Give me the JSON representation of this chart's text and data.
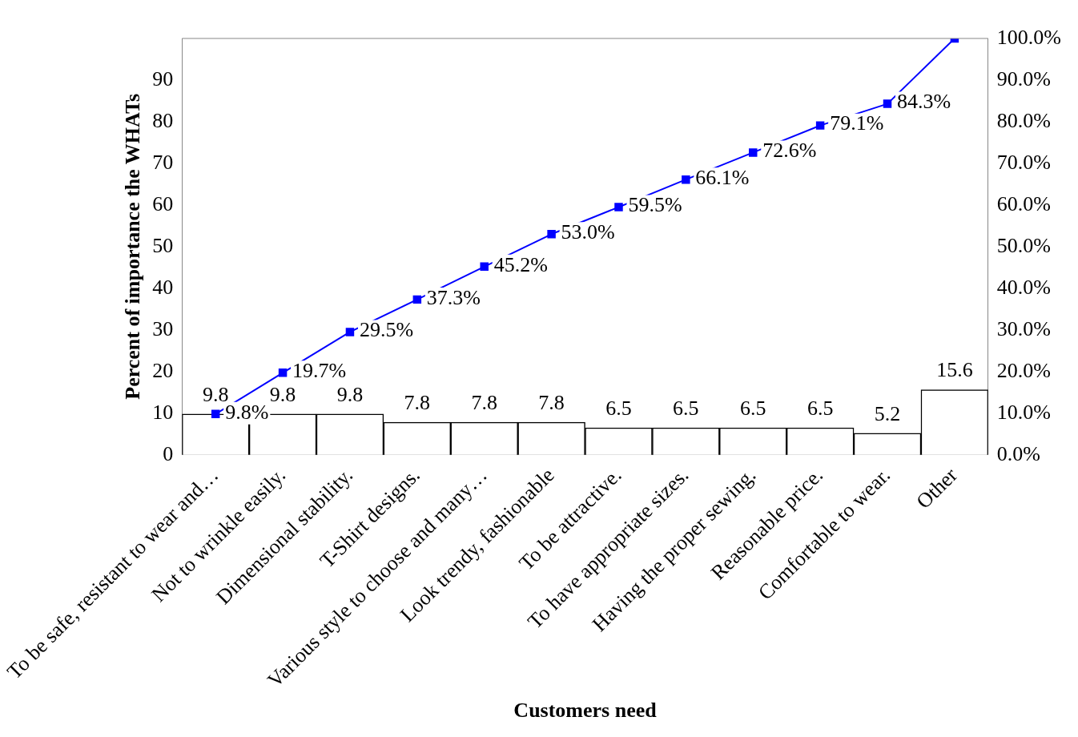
{
  "chart_data": {
    "type": "bar",
    "xlabel": "Customers need",
    "ylabel": "Percent of importance the WHATs",
    "categories": [
      "To be safe, resistant to wear and…",
      "Not to wrinkle easily.",
      "Dimensional stability.",
      "T-Shirt designs.",
      "Various style to choose and many…",
      "Look trendy, fashionable",
      "To be attractive.",
      "To have appropriate sizes.",
      "Having the proper sewing.",
      "Reasonable price.",
      "Comfortable to wear.",
      "Other"
    ],
    "series": [
      {
        "color": "#ffffff",
        "values": [
          9.8,
          9.8,
          9.8,
          7.8,
          7.8,
          7.8,
          6.5,
          6.5,
          6.5,
          6.5,
          5.2,
          15.6
        ],
        "value_labels": [
          "9.8",
          "9.8",
          "9.8",
          "7.8",
          "7.8",
          "7.8",
          "6.5",
          "6.5",
          "6.5",
          "6.5",
          "5.2",
          "15.6"
        ]
      },
      {
        "type": "line",
        "axis": "y2",
        "color": "#0000ff",
        "marker": "square",
        "values": [
          9.8,
          19.7,
          29.5,
          37.3,
          45.2,
          53.0,
          59.5,
          66.1,
          72.6,
          79.1,
          84.3,
          100
        ],
        "value_labels": [
          "9.8%",
          "19.7%",
          "29.5%",
          "37.3%",
          "45.2%",
          "53.0%",
          "59.5%",
          "66.1%",
          "72.6%",
          "79.1%",
          "84.3%",
          null
        ]
      }
    ],
    "ylim": [
      0,
      100
    ],
    "yticks": [
      0,
      10,
      20,
      30,
      40,
      50,
      60,
      70,
      80,
      90
    ],
    "y2lim": [
      0,
      100
    ],
    "y2ticks": [
      {
        "value": 0,
        "label": "0.0%"
      },
      {
        "value": 10,
        "label": "10.0%"
      },
      {
        "value": 20,
        "label": "20.0%"
      },
      {
        "value": 30,
        "label": "30.0%"
      },
      {
        "value": 40,
        "label": "40.0%"
      },
      {
        "value": 50,
        "label": "50.0%"
      },
      {
        "value": 60,
        "label": "60.0%"
      },
      {
        "value": 70,
        "label": "70.0%"
      },
      {
        "value": 80,
        "label": "80.0%"
      },
      {
        "value": 90,
        "label": "90.0%"
      },
      {
        "value": 100,
        "label": "100.0%"
      }
    ],
    "grid": false,
    "legend": false
  }
}
